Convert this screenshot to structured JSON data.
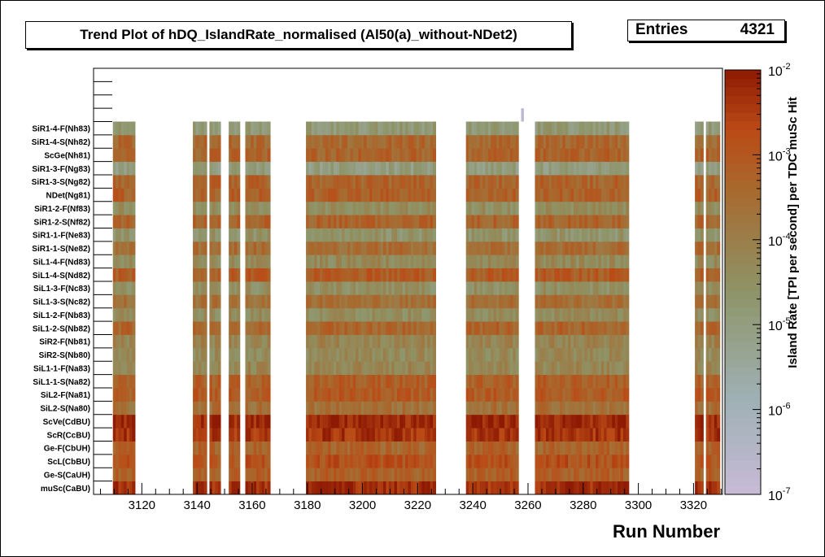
{
  "title": "Trend Plot of hDQ_IslandRate_normalised (Al50(a)_without-NDet2)",
  "stats": {
    "label": "Entries",
    "value": "4321"
  },
  "palette": {
    "low": "#c8bad6",
    "gray": "#9fb1b6",
    "olive": "#8e9467",
    "brown": "#a8692e",
    "orange": "#bb4a16",
    "high": "#8e1a04"
  },
  "chart_data": {
    "type": "heatmap",
    "xlabel": "Run Number",
    "zlabel": "Island Rate [TPI per second] per TDC muSc Hit",
    "xlim": [
      3102.5,
      3330.5
    ],
    "x_ticks": [
      3120,
      3140,
      3160,
      3180,
      3200,
      3220,
      3240,
      3260,
      3280,
      3300,
      3320
    ],
    "z_scale": "log",
    "zlim": [
      1e-07,
      0.01
    ],
    "z_ticks": [
      {
        "value": 1e-07,
        "base": "10",
        "exp": "-7"
      },
      {
        "value": 1e-06,
        "base": "10",
        "exp": "-6"
      },
      {
        "value": 1e-05,
        "base": "10",
        "exp": "-5"
      },
      {
        "value": 0.0001,
        "base": "10",
        "exp": "-4"
      },
      {
        "value": 0.001,
        "base": "10",
        "exp": "-3"
      },
      {
        "value": 0.01,
        "base": "10",
        "exp": "-2"
      }
    ],
    "channels": [
      "muSc(CaBU)",
      "Ge-S(CaUH)",
      "ScL(CbBU)",
      "Ge-F(CbUH)",
      "ScR(CcBU)",
      "ScVe(CdBU)",
      "SiL2-S(Na80)",
      "SiL2-F(Na81)",
      "SiL1-1-S(Na82)",
      "SiL1-1-F(Na83)",
      "SiR2-S(Nb80)",
      "SiR2-F(Nb81)",
      "SiL1-2-S(Nb82)",
      "SiL1-2-F(Nb83)",
      "SiL1-3-S(Nc82)",
      "SiL1-3-F(Nc83)",
      "SiL1-4-S(Nd82)",
      "SiL1-4-F(Nd83)",
      "SiR1-1-S(Ne82)",
      "SiR1-1-F(Ne83)",
      "SiR1-2-S(Nf82)",
      "SiR1-2-F(Nf83)",
      "NDet(Ng81)",
      "SiR1-3-S(Ng82)",
      "SiR1-3-F(Ng83)",
      "ScGe(Nh81)",
      "SiR1-4-S(Nh82)",
      "SiR1-4-F(Nh83)",
      "",
      "",
      "",
      ""
    ],
    "run_ranges": [
      [
        3110,
        3117
      ],
      [
        3139,
        3143
      ],
      [
        3145,
        3148
      ],
      [
        3152,
        3155
      ],
      [
        3158,
        3166
      ],
      [
        3180,
        3226
      ],
      [
        3238,
        3256
      ],
      [
        3263,
        3296
      ],
      [
        3321,
        3323
      ],
      [
        3325,
        3329
      ]
    ],
    "channel_rate_exponent": [
      -2.3,
      -3.2,
      -2.9,
      -3.3,
      -2.4,
      -2.2,
      -3.6,
      -3.1,
      -3.2,
      -4.2,
      -4.3,
      -4.1,
      -3.3,
      -4.4,
      -3.6,
      -4.5,
      -3.1,
      -4.3,
      -3.5,
      -4.6,
      -3.3,
      -4.4,
      -3.2,
      -3.3,
      -5.0,
      -3.3,
      -3.4,
      -4.8
    ],
    "extra_cells": [
      {
        "run": 3258,
        "channel": 28,
        "rate_exponent": -6.7
      }
    ]
  }
}
